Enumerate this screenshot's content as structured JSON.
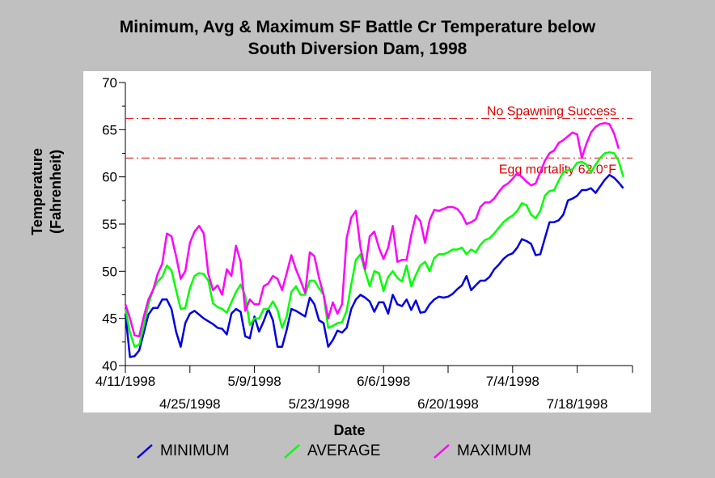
{
  "chart_data": {
    "type": "line",
    "title": "Minimum, Avg & Maximum SF Battle Cr Temperature below",
    "subtitle": "South Diversion Dam, 1998",
    "xlabel": "Date",
    "ylabel_line1": "Temperature",
    "ylabel_line2": "(Fahrenheit)",
    "ylim": [
      40,
      70
    ],
    "yticks": [
      "40",
      "45",
      "50",
      "55",
      "60",
      "65",
      "70"
    ],
    "xlim": [
      "1998-04-11",
      "1998-07-30"
    ],
    "xticks": [
      {
        "date": "1998-04-11",
        "label": "4/11/1998",
        "row": 1
      },
      {
        "date": "1998-04-25",
        "label": "4/25/1998",
        "row": 2
      },
      {
        "date": "1998-05-09",
        "label": "5/9/1998",
        "row": 1
      },
      {
        "date": "1998-05-23",
        "label": "5/23/1998",
        "row": 2
      },
      {
        "date": "1998-06-06",
        "label": "6/6/1998",
        "row": 1
      },
      {
        "date": "1998-06-20",
        "label": "6/20/1998",
        "row": 2
      },
      {
        "date": "1998-07-04",
        "label": "7/4/1998",
        "row": 1
      },
      {
        "date": "1998-07-18",
        "label": "7/18/1998",
        "row": 2
      }
    ],
    "reference_lines": [
      {
        "value": 66.2,
        "label": "No Spawning Success",
        "color": "#e00000"
      },
      {
        "value": 62.0,
        "label": "Egg mortality 62.0°F",
        "color": "#e00000"
      }
    ],
    "series": [
      {
        "name": "MINIMUM",
        "color": "#0000e0",
        "y": [
          45.5,
          40.9,
          41.0,
          41.6,
          43.5,
          45.4,
          46.1,
          46.1,
          47.0,
          47.0,
          46.0,
          43.6,
          42.0,
          44.5,
          45.5,
          45.8,
          45.4,
          45.0,
          44.7,
          44.4,
          44.0,
          43.9,
          43.3,
          45.5,
          46.0,
          45.7,
          43.1,
          42.9,
          45.2,
          43.6,
          44.7,
          46.0,
          44.8,
          42.0,
          42.0,
          43.8,
          46.0,
          45.8,
          45.5,
          45.2,
          47.2,
          46.5,
          44.8,
          44.5,
          42.0,
          42.7,
          43.7,
          43.5,
          44.0,
          46.0,
          47.0,
          47.5,
          47.2,
          46.8,
          45.7,
          46.7,
          46.7,
          45.5,
          47.5,
          46.5,
          46.3,
          47.0,
          45.9,
          46.9,
          45.6,
          45.7,
          46.5,
          47.0,
          47.3,
          47.2,
          47.3,
          47.6,
          48.1,
          48.5,
          49.5,
          48.0,
          48.5,
          49.0,
          49.0,
          49.4,
          50.2,
          50.7,
          51.3,
          51.7,
          51.9,
          52.5,
          53.4,
          53.2,
          52.9,
          51.7,
          51.8,
          53.5,
          55.2,
          55.2,
          55.4,
          56.0,
          57.5,
          57.7,
          58.0,
          58.6,
          58.6,
          58.8,
          58.3,
          59.0,
          59.7,
          60.2,
          59.9,
          59.4,
          58.8
        ]
      },
      {
        "name": "AVERAGE",
        "color": "#00ff00",
        "y": [
          46.0,
          43.5,
          42.0,
          42.2,
          44.2,
          46.5,
          48.0,
          48.9,
          49.4,
          50.6,
          50.1,
          48.0,
          46.0,
          46.1,
          48.2,
          49.5,
          49.8,
          49.7,
          49.0,
          46.6,
          46.2,
          46.0,
          45.6,
          46.7,
          47.8,
          48.6,
          47.4,
          44.3,
          45.0,
          45.0,
          46.0,
          46.0,
          46.8,
          45.9,
          44.0,
          45.2,
          47.8,
          48.4,
          47.5,
          47.5,
          49.0,
          49.0,
          48.2,
          47.5,
          44.0,
          44.2,
          44.5,
          44.6,
          45.8,
          48.6,
          51.2,
          51.8,
          50.0,
          48.4,
          50.0,
          49.8,
          47.9,
          49.4,
          50.0,
          49.3,
          48.9,
          50.6,
          48.4,
          49.6,
          50.6,
          51.0,
          50.0,
          51.4,
          51.8,
          51.8,
          52.0,
          52.3,
          52.3,
          52.5,
          51.8,
          52.3,
          52.0,
          52.8,
          53.3,
          53.5,
          54.0,
          54.6,
          55.2,
          55.6,
          55.9,
          56.4,
          57.2,
          57.0,
          56.0,
          55.6,
          56.4,
          58.0,
          58.5,
          58.6,
          59.6,
          60.5,
          60.7,
          60.8,
          61.5,
          61.6,
          61.3,
          60.5,
          61.3,
          62.0,
          62.5,
          62.6,
          62.5,
          61.7,
          60.0
        ]
      },
      {
        "name": "MAXIMUM",
        "color": "#ff00ff",
        "y": [
          46.5,
          45.0,
          43.2,
          43.1,
          45.2,
          47.0,
          48.0,
          49.7,
          50.8,
          54.0,
          53.7,
          51.6,
          49.2,
          50.0,
          53.0,
          54.2,
          54.8,
          54.0,
          49.7,
          48.0,
          48.5,
          47.5,
          50.2,
          49.5,
          52.7,
          51.0,
          45.8,
          47.0,
          46.5,
          46.5,
          48.4,
          48.7,
          49.5,
          49.2,
          48.0,
          49.8,
          51.7,
          50.2,
          49.0,
          47.7,
          52.0,
          51.6,
          49.3,
          47.5,
          45.0,
          46.7,
          45.5,
          46.5,
          53.5,
          55.7,
          56.4,
          52.5,
          50.2,
          53.7,
          54.2,
          52.5,
          51.3,
          52.5,
          54.8,
          51.0,
          51.2,
          51.2,
          53.8,
          55.9,
          55.3,
          53.0,
          55.4,
          56.5,
          56.4,
          56.6,
          56.8,
          56.8,
          56.6,
          56.0,
          55.0,
          55.2,
          55.5,
          56.8,
          57.3,
          57.3,
          57.7,
          58.4,
          59.0,
          59.3,
          59.8,
          60.4,
          60.0,
          59.5,
          59.1,
          59.3,
          60.5,
          61.7,
          62.5,
          62.8,
          63.6,
          63.9,
          64.3,
          64.7,
          64.5,
          62.0,
          63.5,
          64.7,
          65.3,
          65.6,
          65.7,
          65.6,
          64.6,
          63.0
        ]
      }
    ]
  },
  "legend": [
    "MINIMUM",
    "AVERAGE",
    "MAXIMUM"
  ]
}
